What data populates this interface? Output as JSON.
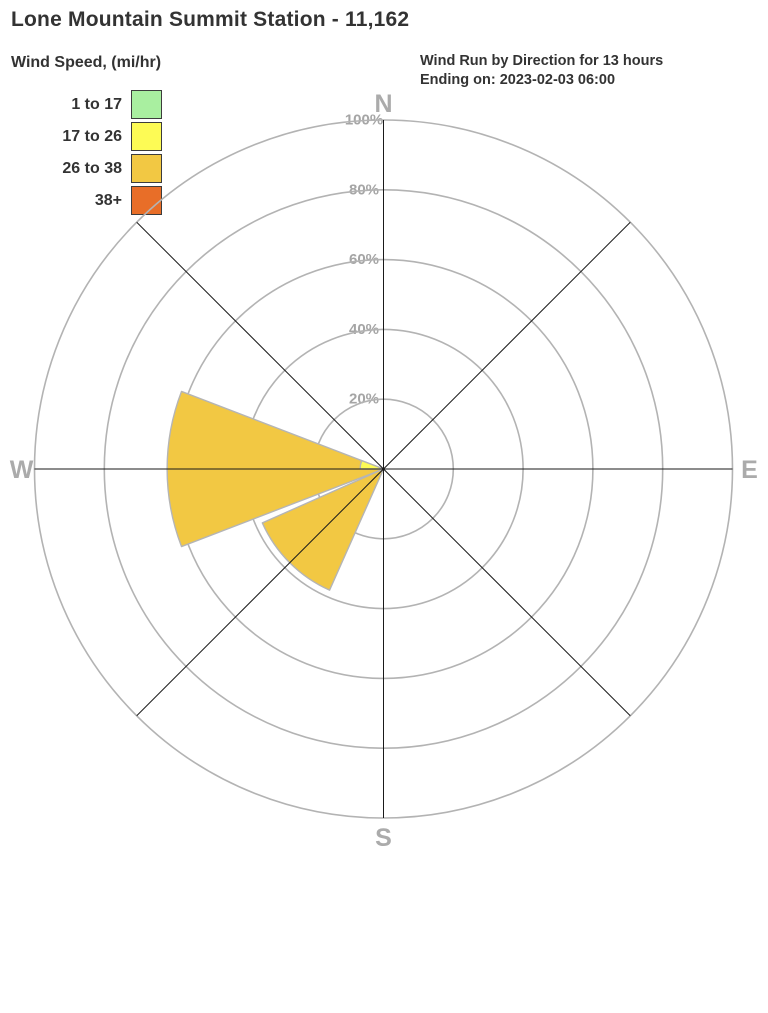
{
  "header": {
    "title": "Lone Mountain Summit Station - 11,162"
  },
  "legend": {
    "title": "Wind Speed, (mi/hr)",
    "items": [
      {
        "label": "1 to 17",
        "color": "#a9efa0"
      },
      {
        "label": "17 to 26",
        "color": "#fdfb55"
      },
      {
        "label": "26 to 38",
        "color": "#f2c843"
      },
      {
        "label": "38+",
        "color": "#e86e28"
      }
    ]
  },
  "caption": {
    "line1": "Wind Run by Direction for 13 hours",
    "line2": "Ending on: 2023-02-03 06:00"
  },
  "chart_data": {
    "type": "wind_rose",
    "title": "Lone Mountain Summit Station - 11,162",
    "period_caption": "Wind Run by Direction for 13 hours Ending on: 2023-02-03 06:00",
    "units": "mi/hr",
    "speed_bins": [
      "1 to 17",
      "17 to 26",
      "26 to 38",
      "38+"
    ],
    "bin_colors": [
      "#a9efa0",
      "#fdfb55",
      "#f2c843",
      "#e86e28"
    ],
    "rings_pct": [
      20,
      40,
      60,
      80,
      100
    ],
    "ring_labels": [
      "20%",
      "40%",
      "60%",
      "80%",
      "100%"
    ],
    "direction_labels": [
      {
        "label": "N",
        "azimuth": 0
      },
      {
        "label": "E",
        "azimuth": 90
      },
      {
        "label": "S",
        "azimuth": 180
      },
      {
        "label": "W",
        "azimuth": 270
      }
    ],
    "max_pct": 100,
    "grid_color": "#b3b3b3",
    "axis_color": "#1a1a1a",
    "petal_stroke": "#b5b5b5",
    "petals": [
      {
        "direction": "W",
        "sector_center_azimuth": 270,
        "total_pct": 62,
        "segments": [
          {
            "speed": "26 to 38",
            "color": "#f2c843",
            "inner_pct": 0,
            "outer_pct": 62,
            "angle_start": 249,
            "angle_end": 291
          },
          {
            "speed": "17 to 26",
            "color": "#fdfb55",
            "inner_pct": 0,
            "outer_pct": 6.7,
            "angle_start": 270,
            "angle_end": 291
          }
        ]
      },
      {
        "direction": "SW",
        "sector_center_azimuth": 225,
        "total_pct": 38,
        "segments": [
          {
            "speed": "26 to 38",
            "color": "#f2c843",
            "inner_pct": 0,
            "outer_pct": 38,
            "angle_start": 204,
            "angle_end": 246
          }
        ]
      }
    ]
  }
}
